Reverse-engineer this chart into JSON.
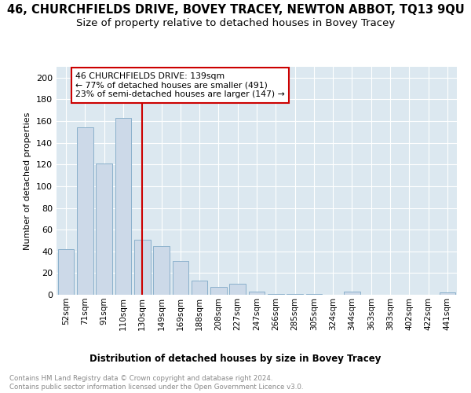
{
  "title": "46, CHURCHFIELDS DRIVE, BOVEY TRACEY, NEWTON ABBOT, TQ13 9QU",
  "subtitle": "Size of property relative to detached houses in Bovey Tracey",
  "xlabel": "Distribution of detached houses by size in Bovey Tracey",
  "ylabel": "Number of detached properties",
  "footnote": "Contains HM Land Registry data © Crown copyright and database right 2024.\nContains public sector information licensed under the Open Government Licence v3.0.",
  "categories": [
    "52sqm",
    "71sqm",
    "91sqm",
    "110sqm",
    "130sqm",
    "149sqm",
    "169sqm",
    "188sqm",
    "208sqm",
    "227sqm",
    "247sqm",
    "266sqm",
    "285sqm",
    "305sqm",
    "324sqm",
    "344sqm",
    "363sqm",
    "383sqm",
    "402sqm",
    "422sqm",
    "441sqm"
  ],
  "values": [
    42,
    154,
    121,
    163,
    51,
    45,
    31,
    13,
    7,
    10,
    3,
    1,
    1,
    1,
    0,
    3,
    0,
    0,
    0,
    0,
    2
  ],
  "bar_color": "#ccd9e8",
  "bar_edge_color": "#8ab0cc",
  "vline_x_index": 4,
  "vline_label": "46 CHURCHFIELDS DRIVE: 139sqm",
  "annotation_line1": "← 77% of detached houses are smaller (491)",
  "annotation_line2": "23% of semi-detached houses are larger (147) →",
  "vline_color": "#cc0000",
  "annotation_box_color": "#cc0000",
  "ylim": [
    0,
    210
  ],
  "yticks": [
    0,
    20,
    40,
    60,
    80,
    100,
    120,
    140,
    160,
    180,
    200
  ],
  "plot_bg_color": "#dce8f0",
  "grid_color": "#ffffff",
  "title_fontsize": 10.5,
  "subtitle_fontsize": 9.5
}
